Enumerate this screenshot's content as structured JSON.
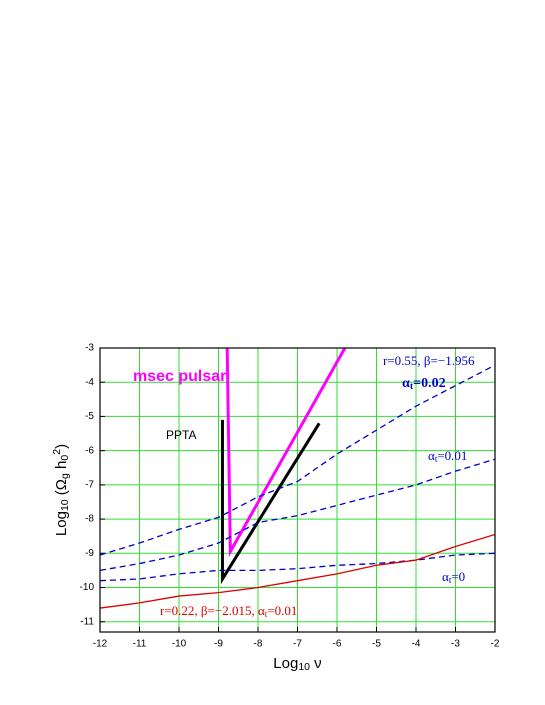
{
  "chart_data": {
    "type": "line",
    "xlabel": [
      {
        "text": "Log"
      },
      {
        "sub": "10"
      },
      {
        "text": " ν"
      }
    ],
    "ylabel": [
      {
        "text": "Log"
      },
      {
        "sub": "10"
      },
      {
        "text": " (Ω"
      },
      {
        "sub": "g"
      },
      {
        "text": " h"
      },
      {
        "sub": "0"
      },
      {
        "sup": "2"
      },
      {
        "text": ")"
      }
    ],
    "xlim": [
      -12,
      -2
    ],
    "ylim": [
      -11.3,
      -3
    ],
    "xticks": [
      -12,
      -11,
      -10,
      -9,
      -8,
      -7,
      -6,
      -5,
      -4,
      -3,
      -2
    ],
    "yticks": [
      -3,
      -4,
      -5,
      -6,
      -7,
      -8,
      -9,
      -10,
      -11
    ],
    "grid": true,
    "grid_color": "#33dd33",
    "series": [
      {
        "name": "msec pulsar",
        "color": "#ff00ff",
        "dash": false,
        "width": 3,
        "x": [
          -8.78,
          -8.7,
          -5.8
        ],
        "values": [
          -3,
          -8.95,
          -3
        ]
      },
      {
        "name": "PPTA",
        "color": "#000000",
        "dash": false,
        "width": 3,
        "x": [
          -8.9,
          -8.9,
          -6.45
        ],
        "values": [
          -5.1,
          -9.75,
          -5.2
        ]
      },
      {
        "color": "#0000cc",
        "dash": true,
        "width": 1.3,
        "x": [
          -12,
          -11,
          -10,
          -9,
          -8,
          -7,
          -6,
          -5,
          -4,
          -3,
          -2
        ],
        "values": [
          -9.05,
          -8.7,
          -8.3,
          -7.95,
          -7.35,
          -6.9,
          -6.1,
          -5.4,
          -4.7,
          -4.1,
          -3.5
        ]
      },
      {
        "color": "#0000cc",
        "dash": true,
        "width": 1.3,
        "x": [
          -12,
          -11,
          -10,
          -9,
          -8,
          -7,
          -6,
          -5,
          -4,
          -3,
          -2
        ],
        "values": [
          -9.5,
          -9.3,
          -9.05,
          -8.7,
          -8.1,
          -7.9,
          -7.6,
          -7.3,
          -7.0,
          -6.6,
          -6.25
        ]
      },
      {
        "color": "#0000cc",
        "dash": true,
        "width": 1.3,
        "x": [
          -12,
          -11,
          -10,
          -9,
          -8,
          -7,
          -6,
          -5,
          -4,
          -3,
          -2
        ],
        "values": [
          -9.8,
          -9.75,
          -9.6,
          -9.5,
          -9.5,
          -9.45,
          -9.35,
          -9.3,
          -9.2,
          -9.05,
          -9.0
        ]
      },
      {
        "color": "#e00000",
        "dash": false,
        "width": 1.3,
        "x": [
          -12,
          -11,
          -10,
          -9,
          -8,
          -7,
          -6,
          -5,
          -4,
          -3,
          -2
        ],
        "values": [
          -10.6,
          -10.45,
          -10.25,
          -10.15,
          -10.0,
          -9.8,
          -9.6,
          -9.35,
          -9.2,
          -8.8,
          -8.45
        ]
      }
    ],
    "annotations": [
      [
        {
          "text": "r=0.55, β=−1.956"
        }
      ],
      [
        {
          "text": "α"
        },
        {
          "sub": "t"
        },
        {
          "text": "=0.02"
        }
      ],
      [
        {
          "text": "α"
        },
        {
          "sub": "t"
        },
        {
          "text": "=0.01"
        }
      ],
      [
        {
          "text": "α"
        },
        {
          "sub": "t"
        },
        {
          "text": "=0"
        }
      ],
      [
        {
          "text": "r=0.22, β=−2.015, α"
        },
        {
          "sub": "t"
        },
        {
          "text": "=0.01"
        }
      ]
    ]
  }
}
